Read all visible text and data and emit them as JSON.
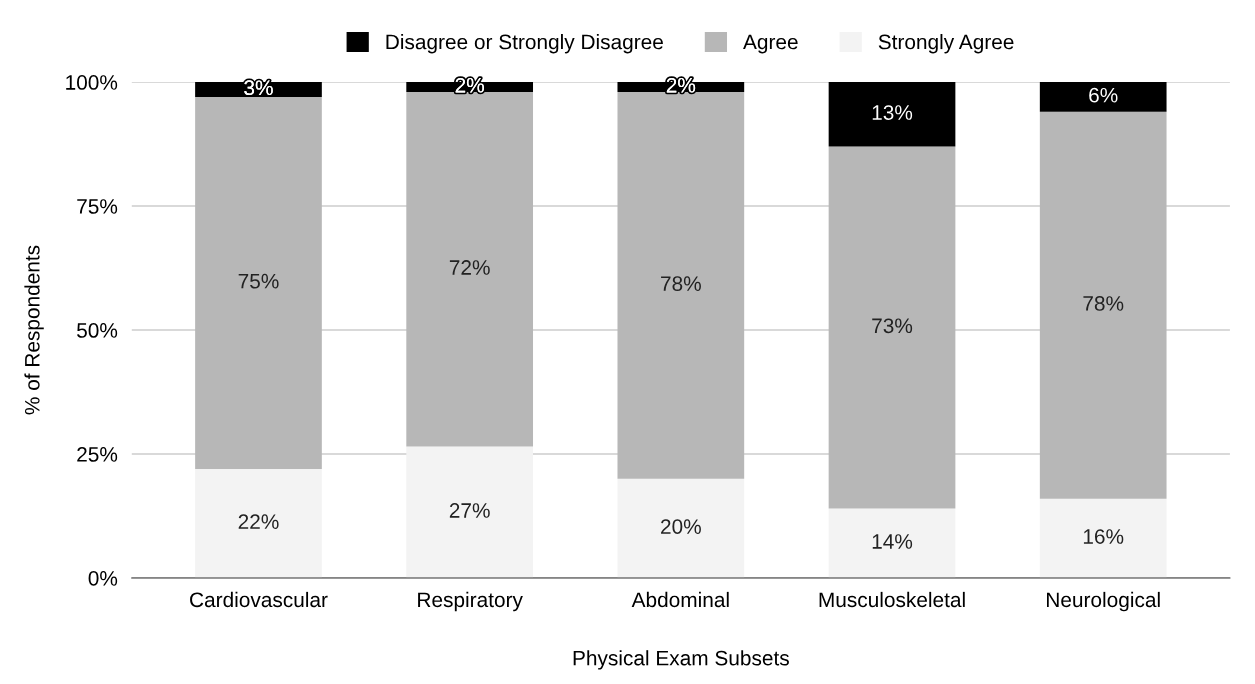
{
  "chart_data": {
    "type": "bar",
    "stacked": true,
    "xlabel": "Physical Exam Subsets",
    "ylabel": "% of Respondents",
    "categories": [
      "Cardiovascular",
      "Respiratory",
      "Abdominal",
      "Musculoskeletal",
      "Neurological"
    ],
    "series": [
      {
        "name": "Strongly Agree",
        "color": "#f3f3f3",
        "values": [
          22,
          26.5,
          20,
          14,
          16
        ],
        "value_labels": [
          "22%",
          "27%",
          "20%",
          "14%",
          "16%"
        ]
      },
      {
        "name": "Agree",
        "color": "#b7b7b7",
        "values": [
          75,
          71.5,
          78,
          73,
          78
        ],
        "value_labels": [
          "75%",
          "72%",
          "78%",
          "73%",
          "78%"
        ]
      },
      {
        "name": "Disagree or Strongly Disagree",
        "color": "#000000",
        "values": [
          3,
          2,
          2,
          13,
          6
        ],
        "value_labels": [
          "3%",
          "2%",
          "2%",
          "13%",
          "6%"
        ]
      }
    ],
    "ylim": [
      0,
      100
    ],
    "yticks": [
      {
        "value": 0,
        "label": "0%"
      },
      {
        "value": 25,
        "label": "25%"
      },
      {
        "value": 50,
        "label": "50%"
      },
      {
        "value": 75,
        "label": "75%"
      },
      {
        "value": 100,
        "label": "100%"
      }
    ],
    "grid": "y",
    "legend": "top"
  }
}
